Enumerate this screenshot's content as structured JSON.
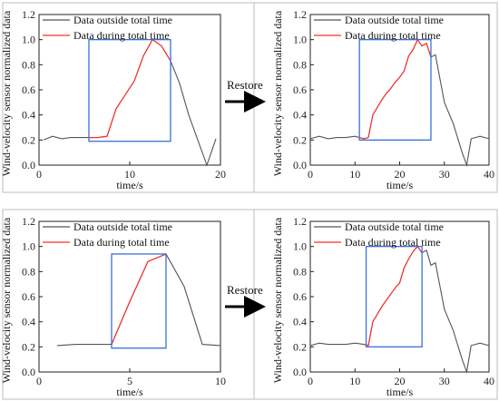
{
  "figure": {
    "restore_label": "Restore",
    "colors": {
      "outside": "#555555",
      "during": "#ff2a2a",
      "box": "#3a6fd8"
    }
  },
  "chart_data": [
    {
      "type": "line",
      "xlabel": "time/s",
      "ylabel": "Wind-velocity sensor normalized data",
      "xlim": [
        0,
        20
      ],
      "ylim": [
        0,
        1.2
      ],
      "xticks": [
        0,
        10,
        20
      ],
      "yticks": [
        0.0,
        0.2,
        0.4,
        0.6,
        0.8,
        1.0,
        1.2
      ],
      "grid": false,
      "legend": "top-left",
      "series": [
        {
          "name": "Data outside total time",
          "x": [
            0.5,
            1.5,
            2.5,
            3.5,
            4.5,
            5.5,
            6.5,
            7.5,
            8.5,
            9.5,
            10.5,
            11.5,
            12.5,
            13.5,
            14.5,
            15.5,
            16.5,
            17.5,
            18.5,
            19.5
          ],
          "y": [
            0.2,
            0.23,
            0.21,
            0.22,
            0.22,
            0.22,
            0.22,
            0.23,
            0.45,
            0.56,
            0.67,
            0.87,
            1.0,
            0.95,
            0.83,
            0.65,
            0.4,
            0.2,
            0.0,
            0.21
          ]
        },
        {
          "name": "Data during total time",
          "x": [
            5.5,
            6.5,
            7.5,
            8.5,
            9.5,
            10.5,
            11.5,
            12.5,
            13.5,
            14.5
          ],
          "y": [
            0.22,
            0.22,
            0.23,
            0.45,
            0.56,
            0.67,
            0.87,
            1.0,
            0.95,
            0.83
          ]
        }
      ],
      "box": {
        "x": [
          5.5,
          14.5
        ],
        "y": [
          0.19,
          1.0
        ]
      }
    },
    {
      "type": "line",
      "xlabel": "time/s",
      "ylabel": "Wind-velocity sensor normalized data",
      "xlim": [
        0,
        40
      ],
      "ylim": [
        0,
        1.2
      ],
      "xticks": [
        0,
        10,
        20,
        30,
        40
      ],
      "yticks": [
        0.0,
        0.2,
        0.4,
        0.6,
        0.8,
        1.0,
        1.2
      ],
      "grid": false,
      "legend": "top-left",
      "series": [
        {
          "name": "Data outside total time",
          "x": [
            0,
            2,
            4,
            6,
            8,
            10,
            11,
            12,
            13,
            14,
            15,
            16,
            17,
            18,
            19,
            20,
            21,
            22,
            23,
            24,
            25,
            26,
            27,
            28,
            30,
            32,
            34,
            35,
            36,
            38,
            40
          ],
          "y": [
            0.21,
            0.23,
            0.21,
            0.22,
            0.22,
            0.23,
            0.22,
            0.21,
            0.22,
            0.4,
            0.46,
            0.52,
            0.57,
            0.61,
            0.66,
            0.7,
            0.75,
            0.87,
            0.92,
            1.0,
            0.95,
            0.97,
            0.86,
            0.88,
            0.5,
            0.33,
            0.1,
            0.0,
            0.21,
            0.23,
            0.21
          ]
        },
        {
          "name": "Data during total time",
          "x": [
            11,
            12,
            13,
            14,
            15,
            16,
            17,
            18,
            19,
            20,
            21,
            22,
            23,
            24,
            25,
            26,
            27
          ],
          "y": [
            0.22,
            0.21,
            0.22,
            0.4,
            0.46,
            0.52,
            0.57,
            0.61,
            0.66,
            0.7,
            0.75,
            0.87,
            0.92,
            1.0,
            0.95,
            0.97,
            0.86
          ]
        }
      ],
      "box": {
        "x": [
          11,
          27
        ],
        "y": [
          0.2,
          1.0
        ]
      }
    },
    {
      "type": "line",
      "xlabel": "time/s",
      "ylabel": "Wind-velocity sensor normalized data",
      "xlim": [
        0,
        10
      ],
      "ylim": [
        0,
        1.2
      ],
      "xticks": [
        0,
        5,
        10
      ],
      "yticks": [
        0.0,
        0.2,
        0.4,
        0.6,
        0.8,
        1.0,
        1.2
      ],
      "grid": false,
      "legend": "top-left",
      "series": [
        {
          "name": "Data outside total time",
          "x": [
            1,
            2,
            3,
            4,
            5,
            6,
            7,
            8,
            9,
            10
          ],
          "y": [
            0.21,
            0.22,
            0.22,
            0.22,
            0.56,
            0.88,
            0.94,
            0.68,
            0.22,
            0.21
          ]
        },
        {
          "name": "Data during total time",
          "x": [
            4,
            5,
            6,
            7
          ],
          "y": [
            0.22,
            0.56,
            0.88,
            0.94
          ]
        }
      ],
      "box": {
        "x": [
          4,
          7
        ],
        "y": [
          0.19,
          0.94
        ]
      }
    },
    {
      "type": "line",
      "xlabel": "time/s",
      "ylabel": "Wind-velocity sensor normalized data",
      "xlim": [
        0,
        40
      ],
      "ylim": [
        0,
        1.2
      ],
      "xticks": [
        0,
        10,
        20,
        30,
        40
      ],
      "yticks": [
        0.0,
        0.2,
        0.4,
        0.6,
        0.8,
        1.0,
        1.2
      ],
      "grid": false,
      "legend": "top-left",
      "series": [
        {
          "name": "Data outside total time",
          "x": [
            0,
            2,
            4,
            6,
            8,
            10,
            12,
            13,
            14,
            15,
            16,
            17,
            18,
            19,
            20,
            21,
            22,
            23,
            24,
            25,
            26,
            27,
            28,
            30,
            32,
            34,
            35,
            36,
            38,
            40
          ],
          "y": [
            0.21,
            0.23,
            0.22,
            0.22,
            0.22,
            0.23,
            0.22,
            0.21,
            0.4,
            0.46,
            0.52,
            0.57,
            0.62,
            0.67,
            0.71,
            0.83,
            0.9,
            0.96,
            1.0,
            0.95,
            0.97,
            0.85,
            0.87,
            0.5,
            0.33,
            0.1,
            0.0,
            0.21,
            0.23,
            0.21
          ]
        },
        {
          "name": "Data during total time",
          "x": [
            12,
            13,
            14,
            15,
            16,
            17,
            18,
            19,
            20,
            21,
            22,
            23,
            24,
            25
          ],
          "y": [
            0.22,
            0.21,
            0.4,
            0.46,
            0.52,
            0.57,
            0.62,
            0.67,
            0.71,
            0.83,
            0.9,
            0.96,
            1.0,
            0.95
          ]
        }
      ],
      "box": {
        "x": [
          12.5,
          25
        ],
        "y": [
          0.2,
          1.0
        ]
      }
    }
  ]
}
